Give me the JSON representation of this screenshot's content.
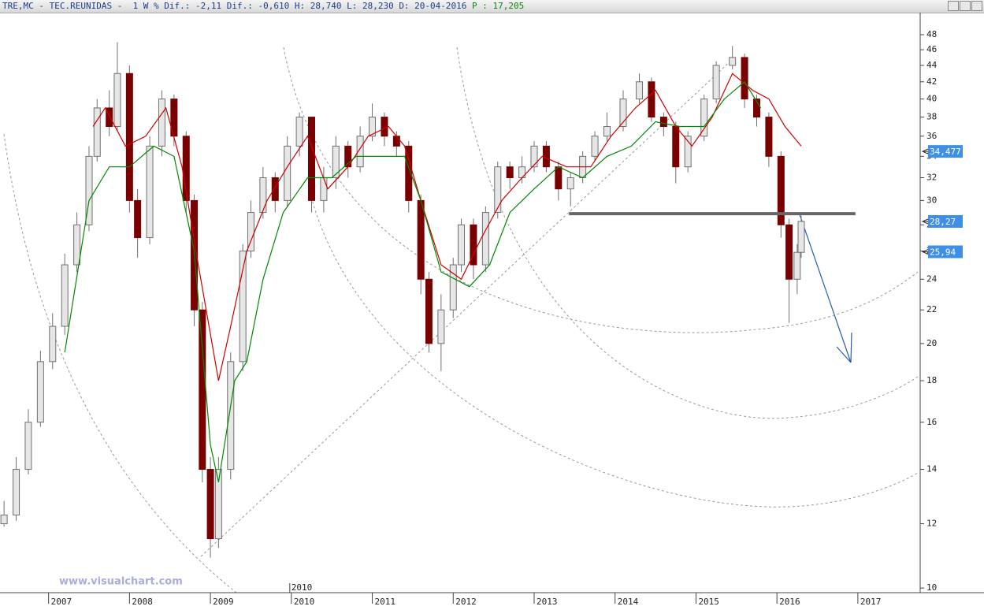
{
  "header": {
    "main": "TRE,MC - TEC.REUNIDAS -  1 W % Dif.: -2,11 Dif.: -0,610 H: 28,740 L: 28,230 D: 20-04-2016",
    "p": "P : 17,205"
  },
  "chart_data": {
    "type": "candlestick",
    "watermark": "www.visualchart.com",
    "log_scale": true,
    "up_color": "#e6e6e6",
    "down_color": "#7a0000",
    "wick_color": "#707070",
    "x": [
      2006.45,
      2006.6,
      2006.75,
      2006.9,
      2007.05,
      2007.2,
      2007.35,
      2007.5,
      2007.6,
      2007.75,
      2007.85,
      2008.0,
      2008.1,
      2008.25,
      2008.4,
      2008.55,
      2008.7,
      2008.8,
      2008.9,
      2009.0,
      2009.1,
      2009.25,
      2009.4,
      2009.5,
      2009.65,
      2009.8,
      2009.95,
      2010.1,
      2010.25,
      2010.4,
      2010.55,
      2010.7,
      2010.85,
      2011.0,
      2011.15,
      2011.3,
      2011.45,
      2011.6,
      2011.7,
      2011.85,
      2012.0,
      2012.1,
      2012.25,
      2012.4,
      2012.55,
      2012.7,
      2012.85,
      2013.0,
      2013.15,
      2013.3,
      2013.45,
      2013.6,
      2013.75,
      2013.9,
      2014.1,
      2014.3,
      2014.45,
      2014.6,
      2014.75,
      2014.9,
      2015.1,
      2015.25,
      2015.45,
      2015.6,
      2015.75,
      2015.9,
      2016.05,
      2016.15,
      2016.25,
      2016.3
    ],
    "open": [
      12.0,
      12.3,
      14,
      16,
      19,
      21,
      25,
      28,
      34,
      39,
      37,
      43,
      30,
      27,
      35,
      40,
      36,
      30,
      22,
      14,
      11.5,
      14,
      19,
      26,
      29,
      32,
      30,
      35,
      38,
      30,
      32,
      35,
      33,
      36,
      38,
      36,
      35,
      30,
      24,
      20,
      22,
      25,
      28,
      25,
      29,
      33,
      32,
      33,
      35,
      33,
      31,
      32,
      34,
      36,
      37,
      40,
      42,
      38,
      37,
      33,
      36,
      40,
      44,
      45,
      40,
      38,
      34,
      28,
      24,
      25.9
    ],
    "high": [
      12.8,
      14.5,
      16.6,
      19.6,
      21.8,
      25.8,
      29,
      35,
      40,
      41,
      47,
      44,
      31,
      36,
      41,
      40.5,
      36.5,
      30.5,
      22.5,
      14.5,
      14.5,
      19.5,
      26.5,
      30,
      33,
      32.5,
      36,
      38.5,
      38,
      33,
      36,
      35.5,
      37,
      39.5,
      38.5,
      36.5,
      35.5,
      30.5,
      24.5,
      23,
      25.5,
      28.5,
      28.5,
      29.5,
      33.5,
      33.5,
      34,
      35.5,
      35.5,
      33.5,
      32.5,
      34.5,
      36.5,
      38.5,
      41,
      43,
      42.5,
      38.5,
      37.5,
      36.5,
      40.5,
      44.5,
      46.5,
      45.5,
      40.5,
      38.5,
      34.5,
      28.5,
      26.5,
      28.74
    ],
    "low": [
      11.9,
      12.1,
      13.8,
      15.8,
      18.6,
      20.5,
      24.5,
      27.5,
      33.5,
      36,
      36.5,
      29,
      25.5,
      26.5,
      34,
      35,
      29,
      21,
      13.5,
      10.9,
      11.2,
      13.6,
      18.5,
      25.5,
      28.5,
      29,
      29.5,
      34,
      29,
      29,
      31,
      32,
      32.5,
      35.5,
      35,
      34,
      29,
      23,
      19.5,
      18.5,
      21.5,
      24.5,
      24,
      24.5,
      28.5,
      31,
      31.5,
      32.5,
      32.5,
      30,
      29.5,
      31.5,
      33.5,
      35.5,
      36.5,
      39.5,
      37.5,
      36,
      31.5,
      32.5,
      35.5,
      39.5,
      43.5,
      39,
      37,
      33,
      27,
      21.2,
      23,
      25.5
    ],
    "close": [
      12.3,
      14,
      16,
      19,
      21,
      25,
      28,
      34,
      39,
      37,
      43,
      30,
      27,
      35,
      40,
      36,
      30,
      22,
      14,
      11.5,
      14,
      19,
      26,
      29,
      32,
      30,
      35,
      38,
      30,
      32,
      35,
      33,
      36,
      38,
      36,
      35,
      30,
      24,
      20,
      22,
      25,
      28,
      25,
      29,
      33,
      32,
      33,
      35,
      33,
      31,
      32,
      34,
      36,
      37,
      40,
      42,
      38,
      37,
      33,
      36,
      40,
      44,
      45,
      40,
      38,
      34,
      28,
      24,
      25.9,
      28.27
    ],
    "ma_series": [
      {
        "color": "#cc0000",
        "x": [
          2007.55,
          2007.7,
          2007.95,
          2008.2,
          2008.45,
          2008.65,
          2008.85,
          2009.1,
          2009.25,
          2009.45,
          2009.7,
          2009.95,
          2010.2,
          2010.45,
          2010.7,
          2010.95,
          2011.2,
          2011.4,
          2011.6,
          2011.85,
          2012.1,
          2012.35,
          2012.6,
          2012.85,
          2013.1,
          2013.4,
          2013.7,
          2013.95,
          2014.25,
          2014.5,
          2014.75,
          2014.95,
          2015.2,
          2015.45,
          2015.7,
          2015.9,
          2016.1,
          2016.3
        ],
        "values": [
          37,
          39,
          35,
          36,
          39,
          33,
          25,
          18,
          21,
          26,
          30,
          33,
          36,
          31,
          33,
          36,
          37,
          35,
          30,
          25,
          24,
          27,
          30,
          32,
          34,
          33,
          33,
          36,
          39,
          41,
          37,
          35,
          38,
          43,
          41,
          40,
          37,
          35
        ]
      },
      {
        "color": "#008800",
        "x": [
          2007.2,
          2007.5,
          2007.75,
          2008.0,
          2008.3,
          2008.55,
          2008.8,
          2009.0,
          2009.1,
          2009.3,
          2009.45,
          2009.65,
          2009.9,
          2010.2,
          2010.5,
          2010.8,
          2011.1,
          2011.4,
          2011.6,
          2011.85,
          2012.2,
          2012.45,
          2012.7,
          2013.0,
          2013.3,
          2013.6,
          2013.9,
          2014.2,
          2014.5,
          2014.8,
          2015.1,
          2015.35,
          2015.6,
          2015.8
        ],
        "values": [
          19.5,
          30,
          33,
          33,
          35,
          34,
          26,
          15,
          13.5,
          18,
          19,
          24,
          29,
          32,
          32,
          34,
          34,
          34,
          30,
          24.5,
          23.5,
          25,
          29,
          31,
          33,
          32,
          34,
          35,
          37.5,
          37,
          37,
          40,
          42,
          39
        ]
      }
    ],
    "support": {
      "value": 28.9,
      "x": [
        2013.43,
        2016.97
      ]
    },
    "price_markers": [
      {
        "value": 34.477,
        "label": "34,477"
      },
      {
        "value": 28.27,
        "label": "28,27"
      },
      {
        "value": 25.94,
        "label": "25,94"
      }
    ],
    "ylim": [
      9.87,
      51.1
    ],
    "yticks": [
      10,
      12,
      14,
      16,
      18,
      20,
      22,
      24,
      26,
      28,
      30,
      32,
      34,
      36,
      38,
      40,
      42,
      44,
      46,
      48
    ],
    "xlim": [
      2006.4,
      2017.77
    ],
    "xticks": [
      2007,
      2008,
      2009,
      2010,
      2011,
      2012,
      2013,
      2014,
      2015,
      2016,
      2017
    ],
    "x_marker": 2010
  }
}
